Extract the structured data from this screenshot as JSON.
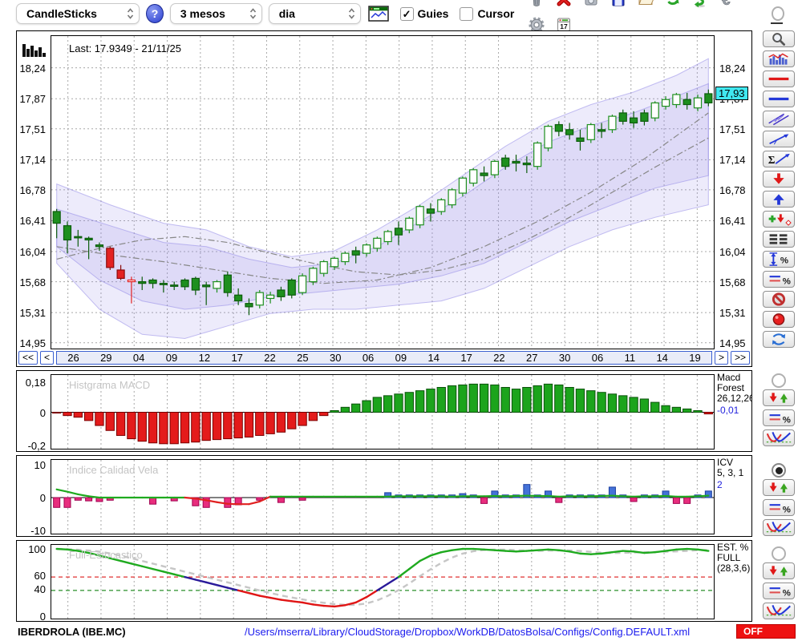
{
  "toolbar": {
    "chart_type": "CandleSticks",
    "period": "3 mesos",
    "interval": "dia",
    "help_label": "?",
    "guies_label": "Guies",
    "cursor_label": "Cursor",
    "guies_checked": true,
    "cursor_checked": false,
    "buttons": [
      "trash",
      "delete",
      "snapshot",
      "save",
      "open",
      "refresh",
      "sync",
      "euro",
      "settings",
      "calendar"
    ],
    "calendar_day": "17"
  },
  "main_chart": {
    "price_tag": "17,93",
    "nav": {
      "first": "<<",
      "prev": "<",
      "next": ">",
      "last": ">>"
    }
  },
  "panels": {
    "macd": {
      "title": "Histgrama MACD",
      "right_lines": [
        "Macd",
        "Forest",
        "26,12,26"
      ],
      "value": "-0,01"
    },
    "icv": {
      "title": "Indice Calidad Vela",
      "right_lines": [
        "ICV",
        "5, 3, 1"
      ],
      "value": "2"
    },
    "est": {
      "title": "Full-Estocastico",
      "right_lines": [
        "EST. %",
        "FULL",
        "(28,3,6)"
      ],
      "value": ""
    }
  },
  "sidebar": {
    "tools": [
      "zoom",
      "volume-chart",
      "red-line",
      "blue-line",
      "channel",
      "trendline",
      "sum-trendline",
      "arrow-down",
      "arrow-up",
      "add-remove",
      "list-rows",
      "vertical-range-percent",
      "lines-percent",
      "forbidden",
      "record",
      "swap"
    ],
    "panel_buttons": [
      "up-down-arrows",
      "lines-percent",
      "curves"
    ],
    "panel_groups": [
      {
        "panel": "macd",
        "selected": false
      },
      {
        "panel": "icv",
        "selected": true
      },
      {
        "panel": "est",
        "selected": false
      }
    ],
    "main_radio_selected": false
  },
  "statusbar": {
    "symbol": "IBERDROLA (IBE.MC)",
    "config_path": "/Users/mserra/Library/CloudStorage/Dropbox/WorkDB/DatosBolsa/Configs/Config.DEFAULT.xml",
    "off_label": "OFF"
  },
  "colors": {
    "candle_up": "#1e8f1e",
    "candle_down": "#e32222",
    "band": "#8c82e6",
    "grid": "#a8a8a8",
    "ma": "#888888",
    "macd_pos": "#1ca41c",
    "macd_neg": "#e41b1b",
    "icv_pos": "#4472d8",
    "icv_neg": "#e82d7d",
    "icv_line": "#1faa1f",
    "icv_line_neg": "#e02020",
    "est_high": "#1faa1f",
    "est_mid": "#2a1a9a",
    "est_low": "#e01515",
    "est_signal": "#c6c6c6",
    "threshold_red": "#e03030",
    "threshold_green": "#2a8f2a",
    "accent_blue": "#3a5fd0",
    "tag_cyan": "#40e8f0",
    "off_red": "#ee1111",
    "path_blue": "#1a1aee"
  },
  "chart_data": [
    {
      "type": "candlestick",
      "last": "Last: 17.9349 - 21/11/25",
      "ylim": [
        14.88,
        18.62
      ],
      "ticks": [
        [
          18.24,
          "18,24"
        ],
        [
          17.87,
          "17,87"
        ],
        [
          17.51,
          "17,51"
        ],
        [
          17.14,
          "17,14"
        ],
        [
          16.78,
          "16,78"
        ],
        [
          16.41,
          "16,41"
        ],
        [
          16.04,
          "16,04"
        ],
        [
          15.68,
          "15,68"
        ],
        [
          15.31,
          "15,31"
        ],
        [
          14.95,
          "14,95"
        ]
      ],
      "dates": [
        "26",
        "29",
        "04",
        "09",
        "12",
        "17",
        "22",
        "25",
        "30",
        "06",
        "09",
        "14",
        "17",
        "22",
        "27",
        "30",
        "06",
        "11",
        "14",
        "19"
      ],
      "style": "gggggrrRgggggggGgggGGggGGGGGgGGGgGGgGGGGgGgggGGgggGgGgggGGGgGg",
      "ohlc": [
        [
          16.38,
          16.55,
          16.2,
          16.52
        ],
        [
          16.18,
          16.4,
          16.02,
          16.35
        ],
        [
          16.22,
          16.3,
          16.1,
          16.22
        ],
        [
          16.18,
          16.22,
          15.95,
          16.2
        ],
        [
          16.1,
          16.15,
          16.05,
          16.12
        ],
        [
          16.08,
          16.1,
          15.82,
          15.85
        ],
        [
          15.82,
          15.88,
          15.7,
          15.72
        ],
        [
          15.7,
          15.74,
          15.42,
          15.68
        ],
        [
          15.66,
          15.74,
          15.58,
          15.68
        ],
        [
          15.66,
          15.72,
          15.6,
          15.7
        ],
        [
          15.65,
          15.7,
          15.55,
          15.66
        ],
        [
          15.63,
          15.68,
          15.58,
          15.64
        ],
        [
          15.62,
          15.72,
          15.58,
          15.7
        ],
        [
          15.58,
          15.74,
          15.52,
          15.72
        ],
        [
          15.62,
          15.68,
          15.4,
          15.64
        ],
        [
          15.6,
          15.7,
          15.55,
          15.68
        ],
        [
          15.55,
          15.8,
          15.5,
          15.76
        ],
        [
          15.52,
          15.6,
          15.4,
          15.45
        ],
        [
          15.42,
          15.48,
          15.28,
          15.38
        ],
        [
          15.4,
          15.58,
          15.36,
          15.55
        ],
        [
          15.48,
          15.56,
          15.42,
          15.52
        ],
        [
          15.5,
          15.62,
          15.45,
          15.58
        ],
        [
          15.52,
          15.72,
          15.48,
          15.7
        ],
        [
          15.55,
          15.78,
          15.52,
          15.75
        ],
        [
          15.68,
          15.86,
          15.64,
          15.84
        ],
        [
          15.78,
          15.94,
          15.74,
          15.92
        ],
        [
          15.86,
          15.98,
          15.82,
          15.96
        ],
        [
          15.92,
          16.04,
          15.88,
          16.02
        ],
        [
          16.0,
          16.1,
          15.9,
          16.05
        ],
        [
          16.02,
          16.14,
          15.98,
          16.12
        ],
        [
          16.08,
          16.22,
          16.04,
          16.2
        ],
        [
          16.16,
          16.3,
          16.12,
          16.28
        ],
        [
          16.24,
          16.4,
          16.12,
          16.32
        ],
        [
          16.3,
          16.46,
          16.26,
          16.44
        ],
        [
          16.36,
          16.6,
          16.32,
          16.58
        ],
        [
          16.5,
          16.62,
          16.4,
          16.55
        ],
        [
          16.52,
          16.68,
          16.48,
          16.66
        ],
        [
          16.6,
          16.8,
          16.56,
          16.78
        ],
        [
          16.74,
          16.94,
          16.7,
          16.92
        ],
        [
          16.86,
          17.04,
          16.82,
          17.02
        ],
        [
          16.98,
          17.06,
          16.88,
          16.95
        ],
        [
          16.96,
          17.14,
          16.92,
          17.12
        ],
        [
          17.06,
          17.2,
          17.02,
          17.16
        ],
        [
          17.1,
          17.2,
          17.0,
          17.12
        ],
        [
          17.08,
          17.18,
          16.98,
          17.1
        ],
        [
          17.06,
          17.36,
          17.02,
          17.34
        ],
        [
          17.28,
          17.56,
          17.24,
          17.54
        ],
        [
          17.48,
          17.6,
          17.42,
          17.56
        ],
        [
          17.5,
          17.58,
          17.38,
          17.44
        ],
        [
          17.4,
          17.5,
          17.25,
          17.36
        ],
        [
          17.38,
          17.58,
          17.34,
          17.56
        ],
        [
          17.48,
          17.58,
          17.4,
          17.5
        ],
        [
          17.5,
          17.68,
          17.46,
          17.66
        ],
        [
          17.6,
          17.74,
          17.56,
          17.7
        ],
        [
          17.64,
          17.72,
          17.52,
          17.58
        ],
        [
          17.6,
          17.74,
          17.55,
          17.7
        ],
        [
          17.64,
          17.84,
          17.6,
          17.82
        ],
        [
          17.78,
          17.9,
          17.74,
          17.86
        ],
        [
          17.8,
          17.94,
          17.76,
          17.92
        ],
        [
          17.86,
          17.94,
          17.74,
          17.8
        ],
        [
          17.76,
          17.92,
          17.72,
          17.88
        ],
        [
          17.82,
          17.98,
          17.78,
          17.93
        ]
      ],
      "bands": [
        {
          "upper": [
            [
              0,
              16.85
            ],
            [
              5,
              16.6
            ],
            [
              10,
              16.38
            ],
            [
              14,
              16.3
            ],
            [
              18,
              16.1
            ],
            [
              22,
              15.98
            ],
            [
              26,
              16.05
            ],
            [
              30,
              16.3
            ],
            [
              34,
              16.6
            ],
            [
              38,
              16.95
            ],
            [
              42,
              17.3
            ],
            [
              46,
              17.6
            ],
            [
              50,
              17.8
            ],
            [
              54,
              17.95
            ],
            [
              58,
              18.15
            ],
            [
              61,
              18.35
            ]
          ],
          "lower": [
            [
              0,
              15.9
            ],
            [
              4,
              15.35
            ],
            [
              8,
              15.05
            ],
            [
              12,
              15.0
            ],
            [
              16,
              15.15
            ],
            [
              20,
              15.3
            ],
            [
              24,
              15.35
            ],
            [
              28,
              15.35
            ],
            [
              32,
              15.4
            ],
            [
              36,
              15.45
            ],
            [
              40,
              15.6
            ],
            [
              44,
              15.85
            ],
            [
              48,
              16.1
            ],
            [
              52,
              16.3
            ],
            [
              56,
              16.45
            ],
            [
              61,
              16.6
            ]
          ]
        },
        {
          "upper": [
            [
              0,
              16.55
            ],
            [
              5,
              16.35
            ],
            [
              10,
              16.15
            ],
            [
              14,
              16.1
            ],
            [
              18,
              15.95
            ],
            [
              22,
              15.85
            ],
            [
              26,
              15.9
            ],
            [
              30,
              16.1
            ],
            [
              34,
              16.4
            ],
            [
              38,
              16.7
            ],
            [
              42,
              17.05
            ],
            [
              46,
              17.35
            ],
            [
              50,
              17.55
            ],
            [
              54,
              17.7
            ],
            [
              58,
              17.9
            ],
            [
              61,
              18.05
            ]
          ],
          "lower": [
            [
              0,
              16.1
            ],
            [
              4,
              15.7
            ],
            [
              8,
              15.45
            ],
            [
              12,
              15.35
            ],
            [
              16,
              15.4
            ],
            [
              20,
              15.5
            ],
            [
              24,
              15.55
            ],
            [
              28,
              15.6
            ],
            [
              32,
              15.65
            ],
            [
              36,
              15.75
            ],
            [
              40,
              15.9
            ],
            [
              44,
              16.15
            ],
            [
              48,
              16.4
            ],
            [
              52,
              16.6
            ],
            [
              56,
              16.8
            ],
            [
              61,
              16.95
            ]
          ]
        }
      ],
      "ma": [
        [
          [
            0,
            16.1
          ],
          [
            5,
            16.0
          ],
          [
            10,
            15.92
          ],
          [
            15,
            15.82
          ],
          [
            20,
            15.72
          ],
          [
            25,
            15.66
          ],
          [
            30,
            15.7
          ],
          [
            35,
            15.85
          ],
          [
            40,
            16.1
          ],
          [
            45,
            16.4
          ],
          [
            50,
            16.75
          ],
          [
            55,
            17.15
          ],
          [
            61,
            17.7
          ]
        ],
        [
          [
            0,
            15.95
          ],
          [
            4,
            16.08
          ],
          [
            8,
            16.18
          ],
          [
            12,
            16.22
          ],
          [
            16,
            16.15
          ],
          [
            20,
            16.02
          ],
          [
            24,
            15.9
          ],
          [
            28,
            15.8
          ],
          [
            32,
            15.76
          ],
          [
            36,
            15.82
          ],
          [
            40,
            15.95
          ],
          [
            44,
            16.18
          ],
          [
            48,
            16.45
          ],
          [
            52,
            16.75
          ],
          [
            56,
            17.05
          ],
          [
            61,
            17.4
          ]
        ]
      ]
    },
    {
      "type": "bar",
      "name": "Histgrama MACD",
      "ylim": [
        -0.22,
        0.225
      ],
      "ticks": [
        [
          0.18,
          "0,18"
        ],
        [
          0,
          "0"
        ],
        [
          -0.2,
          "-0,2"
        ]
      ],
      "values": [
        -0.005,
        -0.02,
        -0.03,
        -0.05,
        -0.08,
        -0.11,
        -0.14,
        -0.16,
        -0.175,
        -0.185,
        -0.19,
        -0.19,
        -0.185,
        -0.18,
        -0.17,
        -0.165,
        -0.16,
        -0.155,
        -0.15,
        -0.14,
        -0.13,
        -0.12,
        -0.1,
        -0.08,
        -0.05,
        -0.02,
        0.01,
        0.03,
        0.05,
        0.07,
        0.09,
        0.1,
        0.11,
        0.12,
        0.13,
        0.14,
        0.15,
        0.16,
        0.165,
        0.17,
        0.17,
        0.165,
        0.15,
        0.14,
        0.15,
        0.16,
        0.17,
        0.165,
        0.15,
        0.14,
        0.13,
        0.12,
        0.11,
        0.1,
        0.09,
        0.08,
        0.06,
        0.04,
        0.03,
        0.02,
        0.01,
        -0.01
      ]
    },
    {
      "type": "bar+line",
      "name": "Indice Calidad Vela",
      "ylim": [
        -11,
        11.5
      ],
      "ticks": [
        [
          10,
          "10"
        ],
        [
          0,
          "0"
        ],
        [
          -10,
          "-10"
        ]
      ],
      "bars": [
        -3,
        -3,
        -0.8,
        -1,
        -1.2,
        -0.8,
        0,
        0,
        0,
        -2,
        0,
        -1,
        0,
        -2.5,
        -3,
        0,
        -3,
        -2.2,
        0,
        -0.8,
        0,
        -1.5,
        0,
        -0.8,
        0,
        0,
        0,
        0,
        0,
        0,
        0,
        1.5,
        0.8,
        0.8,
        0.8,
        0.8,
        0.8,
        0.8,
        1.2,
        0.8,
        -1.8,
        2,
        0.8,
        0.8,
        4,
        0.8,
        2,
        -1.5,
        0.8,
        0.8,
        0.8,
        0.8,
        3.2,
        0.8,
        -1.2,
        0.8,
        0.8,
        2,
        -1.8,
        -1.8,
        0.8,
        2
      ],
      "line": [
        2.5,
        1.8,
        1.0,
        0.4,
        0,
        0,
        0,
        0,
        0,
        0,
        0,
        0,
        0,
        -0.3,
        -0.8,
        -1.4,
        -1.9,
        -2,
        -2,
        -1.2,
        0.3,
        0.3,
        0.3,
        0.3,
        0.3,
        0.3,
        0.3,
        0.3,
        0.3,
        0.3,
        0.3,
        0.3,
        0.4,
        0.4,
        0.4,
        0.4,
        0.4,
        0.3,
        0.4,
        0.4,
        0.4,
        0.5,
        0.4,
        0.5,
        0.6,
        0.5,
        0.5,
        0.3,
        0.4,
        0.4,
        0.4,
        0.5,
        0.6,
        0.4,
        0.3,
        0.4,
        0.4,
        0.5,
        0.3,
        0.3,
        0.4,
        0.6
      ]
    },
    {
      "type": "line",
      "name": "Full-Estocastico",
      "ylim": [
        -4,
        106
      ],
      "ticks": [
        [
          100,
          "100"
        ],
        [
          60,
          "60"
        ],
        [
          40,
          "40"
        ],
        [
          0,
          "0"
        ]
      ],
      "k": [
        100,
        99,
        97,
        94,
        90,
        86,
        82,
        78,
        74,
        70,
        66,
        62,
        58,
        54,
        50,
        46,
        42,
        38,
        34,
        30,
        27,
        24,
        22,
        20,
        17,
        15,
        14,
        16,
        20,
        28,
        38,
        48,
        58,
        70,
        82,
        90,
        95,
        98,
        100,
        100,
        99,
        98,
        97,
        96,
        97,
        98,
        99,
        98,
        96,
        93,
        92,
        93,
        95,
        97,
        96,
        94,
        95,
        97,
        99,
        100,
        99,
        97
      ],
      "thresholds": {
        "red": 58,
        "green": 38
      }
    }
  ]
}
